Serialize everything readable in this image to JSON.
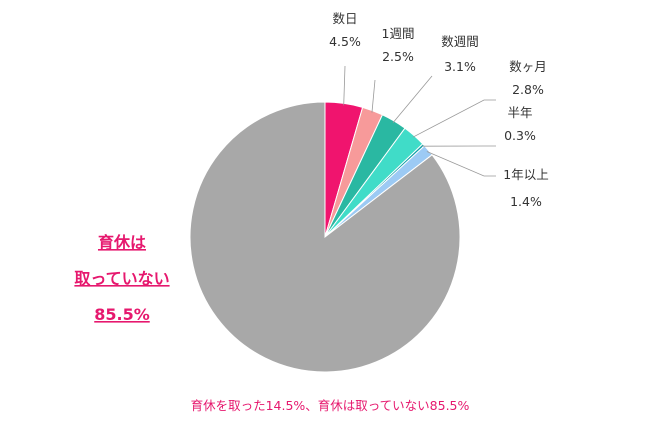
{
  "chart_data": {
    "type": "pie",
    "slices": [
      {
        "label": "数日",
        "value": 4.5,
        "value_text": "4.5%",
        "color": "#f0146e"
      },
      {
        "label": "1週間",
        "value": 2.5,
        "value_text": "2.5%",
        "color": "#f79a9a"
      },
      {
        "label": "数週間",
        "value": 3.1,
        "value_text": "3.1%",
        "color": "#2ab8a2"
      },
      {
        "label": "数ヶ月",
        "value": 2.8,
        "value_text": "2.8%",
        "color": "#40dcc8"
      },
      {
        "label": "半年",
        "value": 0.3,
        "value_text": "0.3%",
        "color": "#0e9ea8"
      },
      {
        "label": "1年以上",
        "value": 1.4,
        "value_text": "1.4%",
        "color": "#9ccaf4"
      },
      {
        "label_lines": [
          "育休は",
          "取っていない"
        ],
        "value": 85.5,
        "value_text": "85.5%",
        "color": "#a8a8a8"
      }
    ],
    "footnote": "育休を取った14.5%、育休は取っていない85.5%"
  }
}
